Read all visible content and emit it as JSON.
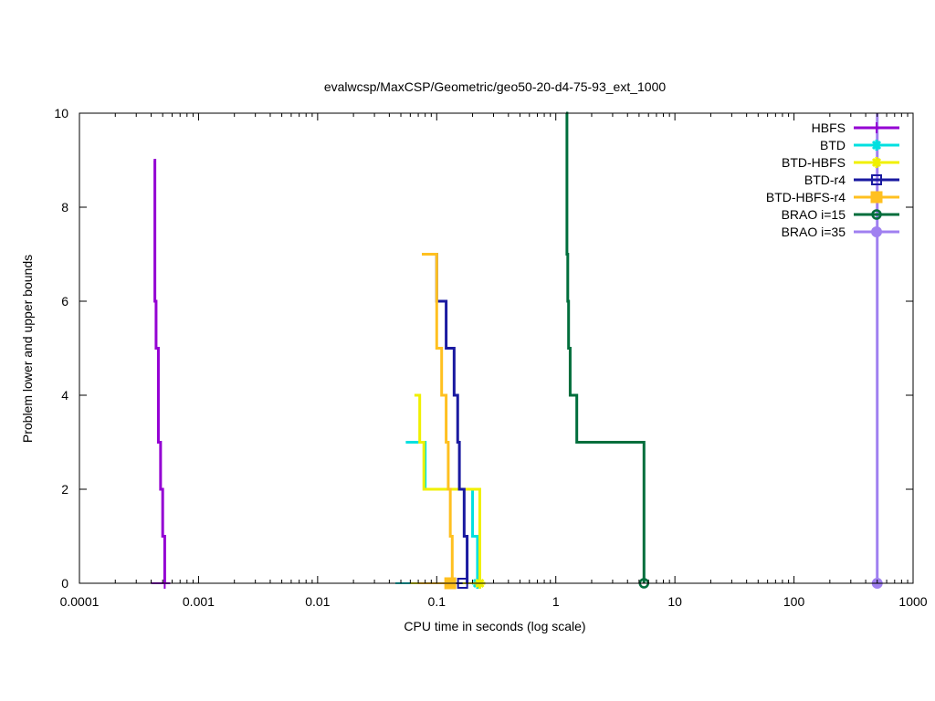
{
  "chart_data": {
    "type": "line",
    "title": "evalwcsp/MaxCSP/Geometric/geo50-20-d4-75-93_ext_1000",
    "xlabel": "CPU time in seconds (log scale)",
    "ylabel": "Problem lower and upper bounds",
    "x_scale": "log",
    "xlim": [
      0.0001,
      1000
    ],
    "ylim": [
      0,
      10
    ],
    "x_ticks": [
      0.0001,
      0.001,
      0.01,
      0.1,
      1,
      10,
      100,
      1000
    ],
    "x_tick_labels": [
      "0.0001",
      "0.001",
      "0.01",
      "0.1",
      "1",
      "10",
      "100",
      "1000"
    ],
    "y_ticks": [
      0,
      2,
      4,
      6,
      8,
      10
    ],
    "y_tick_labels": [
      "0",
      "2",
      "4",
      "6",
      "8",
      "10"
    ],
    "grid": false,
    "legend_position": "top-right",
    "series": [
      {
        "name": "HBFS",
        "color": "#9400d3",
        "marker": "plus",
        "upper": [
          [
            0.00042,
            9
          ],
          [
            0.00043,
            6
          ],
          [
            0.00044,
            5
          ],
          [
            0.00046,
            3
          ],
          [
            0.00048,
            2
          ],
          [
            0.0005,
            1
          ],
          [
            0.00052,
            0
          ]
        ],
        "lower": [
          [
            0.0004,
            0
          ],
          [
            0.00052,
            0
          ]
        ],
        "end_marker": [
          0.00052,
          0
        ]
      },
      {
        "name": "BTD",
        "color": "#00e0e0",
        "marker": "star",
        "upper": [
          [
            0.055,
            3
          ],
          [
            0.08,
            2
          ],
          [
            0.2,
            1
          ],
          [
            0.22,
            0
          ]
        ],
        "lower": [
          [
            0.045,
            0
          ],
          [
            0.22,
            0
          ]
        ],
        "end_marker": [
          0.22,
          0
        ]
      },
      {
        "name": "BTD-HBFS",
        "color": "#f0f000",
        "marker": "star",
        "upper": [
          [
            0.065,
            4
          ],
          [
            0.072,
            3
          ],
          [
            0.078,
            2
          ],
          [
            0.21,
            2
          ],
          [
            0.23,
            0
          ]
        ],
        "lower": [
          [
            0.06,
            0
          ],
          [
            0.23,
            0
          ]
        ],
        "end_marker": [
          0.23,
          0
        ]
      },
      {
        "name": "BTD-r4",
        "color": "#1a1aa0",
        "marker": "box",
        "upper": [
          [
            0.095,
            7
          ],
          [
            0.1,
            6
          ],
          [
            0.12,
            5
          ],
          [
            0.14,
            4
          ],
          [
            0.15,
            3
          ],
          [
            0.155,
            2
          ],
          [
            0.17,
            1
          ],
          [
            0.18,
            0
          ]
        ],
        "lower": [
          [
            0.095,
            0
          ],
          [
            0.165,
            0
          ]
        ],
        "end_marker": [
          0.165,
          0
        ]
      },
      {
        "name": "BTD-HBFS-r4",
        "color": "#ffc020",
        "marker": "filled-box",
        "upper": [
          [
            0.075,
            7
          ],
          [
            0.092,
            7
          ],
          [
            0.1,
            5
          ],
          [
            0.11,
            4
          ],
          [
            0.12,
            3
          ],
          [
            0.125,
            2
          ],
          [
            0.13,
            1
          ],
          [
            0.135,
            0
          ]
        ],
        "lower": [
          [
            0.07,
            0
          ],
          [
            0.13,
            0
          ]
        ],
        "end_marker": [
          0.13,
          0
        ]
      },
      {
        "name": "BRAO i=15",
        "color": "#006e3c",
        "marker": "circle",
        "upper": [
          [
            1.22,
            10
          ],
          [
            1.24,
            7
          ],
          [
            1.26,
            6
          ],
          [
            1.28,
            5
          ],
          [
            1.32,
            4
          ],
          [
            1.5,
            3
          ],
          [
            5.5,
            3
          ],
          [
            5.5,
            0
          ]
        ],
        "lower": [
          [
            5.5,
            0
          ]
        ],
        "end_marker": [
          5.5,
          0
        ]
      },
      {
        "name": "BRAO i=35",
        "color": "#a080f0",
        "marker": "filled-circle",
        "upper": [
          [
            500,
            10
          ],
          [
            500,
            0
          ]
        ],
        "lower": [
          [
            500,
            0
          ]
        ],
        "end_marker": [
          500,
          0
        ]
      }
    ]
  }
}
